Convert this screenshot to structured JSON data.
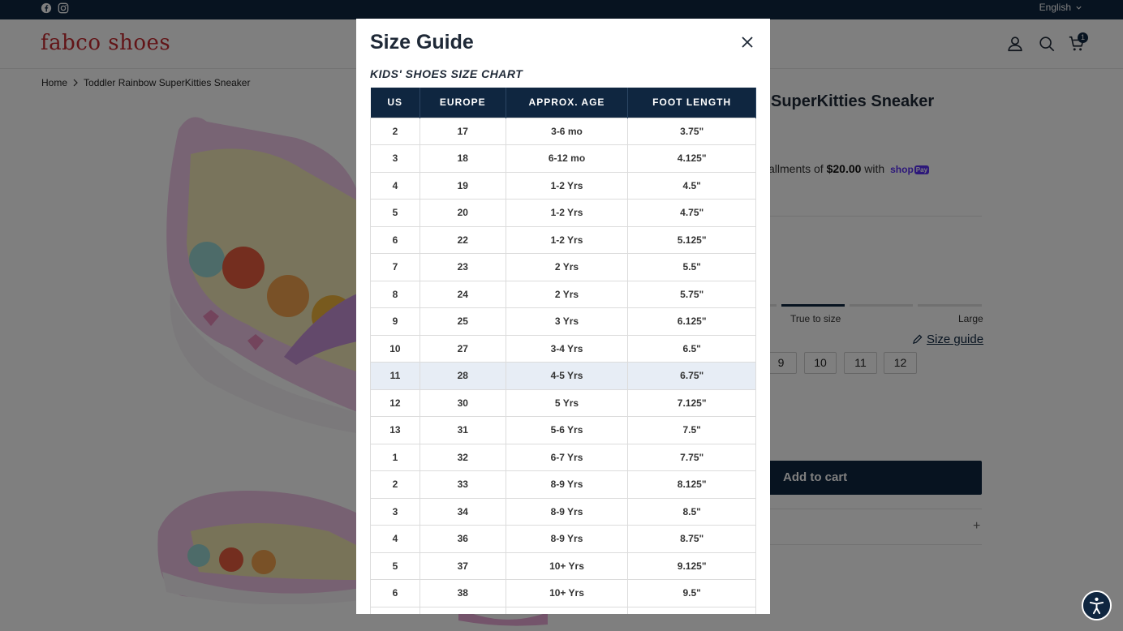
{
  "topbar": {
    "language": "English"
  },
  "header": {
    "logo": "fabco shoes",
    "cart_count": "1"
  },
  "breadcrumb": {
    "home": "Home",
    "current": "Toddler Rainbow SuperKitties Sneaker"
  },
  "product": {
    "title_visible": "SuperKitties Sneaker",
    "installments_prefix": "allments of ",
    "installments_amount": "$20.00",
    "installments_suffix": " with",
    "shoppay": "shop",
    "shoppay_badge": "Pay",
    "fit_labels": {
      "true_to_size": "True to size",
      "large": "Large"
    },
    "fit_level": "true_to_size",
    "size_guide_link": "Size guide",
    "sizes": [
      "9",
      "10",
      "11",
      "12"
    ],
    "add_to_cart": "Add to cart",
    "expand_icon": "+"
  },
  "modal": {
    "title": "Size Guide",
    "chart_heading": "KIDS' SHOES SIZE CHART",
    "columns": [
      "US",
      "EUROPE",
      "APPROX. AGE",
      "FOOT LENGTH"
    ],
    "rows": [
      [
        "2",
        "17",
        "3-6 mo",
        "3.75\""
      ],
      [
        "3",
        "18",
        "6-12 mo",
        "4.125\""
      ],
      [
        "4",
        "19",
        "1-2 Yrs",
        "4.5\""
      ],
      [
        "5",
        "20",
        "1-2 Yrs",
        "4.75\""
      ],
      [
        "6",
        "22",
        "1-2 Yrs",
        "5.125\""
      ],
      [
        "7",
        "23",
        "2 Yrs",
        "5.5\""
      ],
      [
        "8",
        "24",
        "2 Yrs",
        "5.75\""
      ],
      [
        "9",
        "25",
        "3 Yrs",
        "6.125\""
      ],
      [
        "10",
        "27",
        "3-4 Yrs",
        "6.5\""
      ],
      [
        "11",
        "28",
        "4-5 Yrs",
        "6.75\""
      ],
      [
        "12",
        "30",
        "5 Yrs",
        "7.125\""
      ],
      [
        "13",
        "31",
        "5-6 Yrs",
        "7.5\""
      ],
      [
        "1",
        "32",
        "6-7 Yrs",
        "7.75\""
      ],
      [
        "2",
        "33",
        "8-9 Yrs",
        "8.125\""
      ],
      [
        "3",
        "34",
        "8-9 Yrs",
        "8.5\""
      ],
      [
        "4",
        "36",
        "8-9 Yrs",
        "8.75\""
      ],
      [
        "5",
        "37",
        "10+ Yrs",
        "9.125\""
      ],
      [
        "6",
        "38",
        "10+ Yrs",
        "9.5\""
      ],
      [
        "",
        "",
        "",
        ""
      ]
    ],
    "highlighted_row_index": 9
  },
  "icons": {
    "facebook": "facebook-icon",
    "instagram": "instagram-icon",
    "account": "user-icon",
    "search": "search-icon",
    "cart": "cart-icon",
    "close": "close-icon",
    "pencil": "pencil-icon",
    "accessibility": "accessibility-icon"
  },
  "colors": {
    "brand_navy": "#0f2640",
    "logo_red": "#c4292f",
    "shoppay_purple": "#5a31f4"
  }
}
